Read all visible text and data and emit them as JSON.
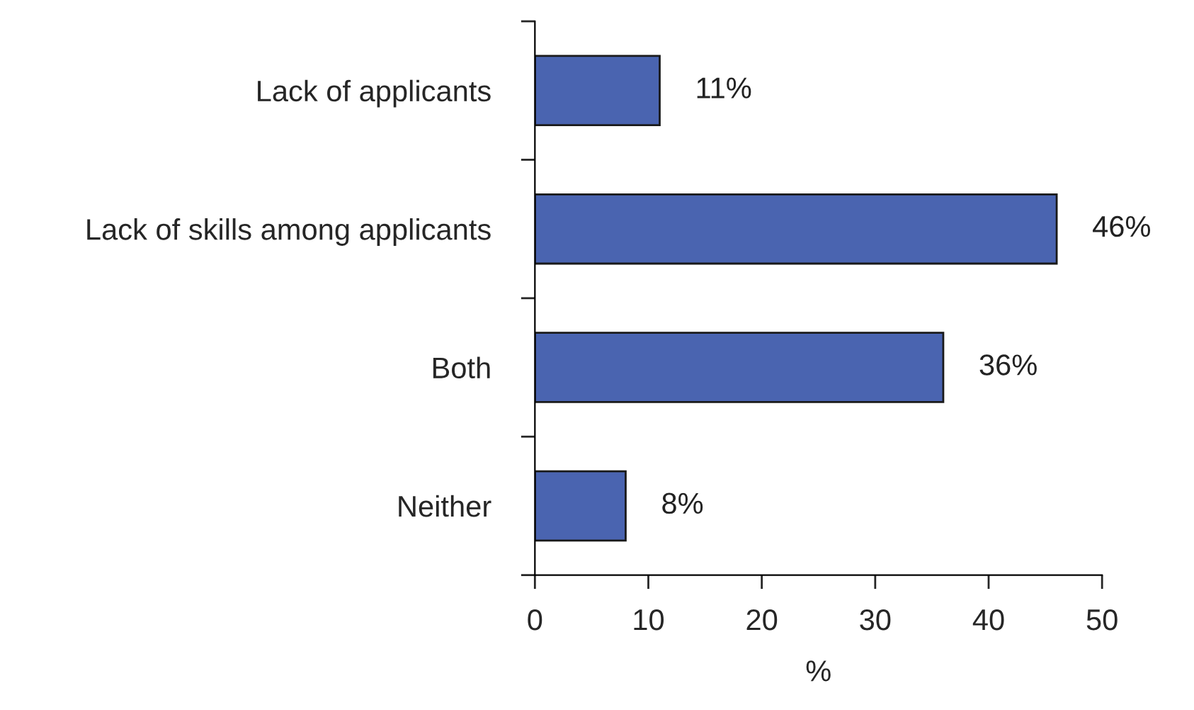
{
  "chart_data": {
    "type": "bar",
    "orientation": "horizontal",
    "categories": [
      "Lack of applicants",
      "Lack of skills among applicants",
      "Both",
      "Neither"
    ],
    "values": [
      11,
      46,
      36,
      8
    ],
    "value_labels": [
      "11%",
      "46%",
      "36%",
      "8%"
    ],
    "color": "#4a64b0",
    "xlabel": "%",
    "xlim": [
      0,
      50
    ],
    "xticks": [
      0,
      10,
      20,
      30,
      40,
      50
    ],
    "grid": false,
    "legend": false
  }
}
